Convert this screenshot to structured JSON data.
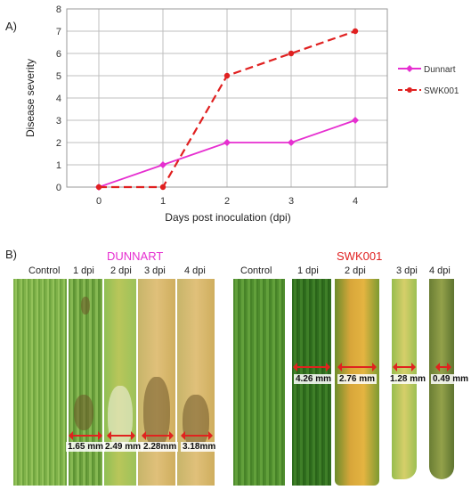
{
  "panel_a_label": "A)",
  "panel_b_label": "B)",
  "chart_data": {
    "type": "line",
    "title": "",
    "xlabel": "Days post inoculation (dpi)",
    "ylabel": "Disease severity",
    "x": [
      0,
      1,
      2,
      3,
      4
    ],
    "xlim": [
      -0.5,
      4.5
    ],
    "ylim": [
      0,
      8
    ],
    "yticks": [
      0,
      1,
      2,
      3,
      4,
      5,
      6,
      7,
      8
    ],
    "grid": true,
    "legend_position": "right",
    "series": [
      {
        "name": "Dunnart",
        "values": [
          0,
          1,
          2,
          2,
          3
        ],
        "color": "#e62fd0",
        "style": "solid",
        "marker": "diamond"
      },
      {
        "name": "SWK001",
        "values": [
          0,
          0,
          5,
          6,
          7
        ],
        "color": "#e02020",
        "style": "dashed",
        "marker": "circle"
      }
    ]
  },
  "photos": {
    "dunnart": {
      "title": "DUNNART",
      "title_color": "#e62fd0",
      "columns": [
        "Control",
        "1 dpi",
        "2 dpi",
        "3 dpi",
        "4 dpi"
      ],
      "measurements": [
        "1.65 mm",
        "2.49 mm",
        "2.28mm",
        "3.18mm"
      ]
    },
    "swk001": {
      "title": "SWK001",
      "title_color": "#e02020",
      "columns": [
        "Control",
        "1 dpi",
        "2 dpi",
        "3 dpi",
        "4 dpi"
      ],
      "measurements": [
        "4.26 mm",
        "2.76 mm",
        "1.28 mm",
        "0.49 mm"
      ]
    }
  }
}
